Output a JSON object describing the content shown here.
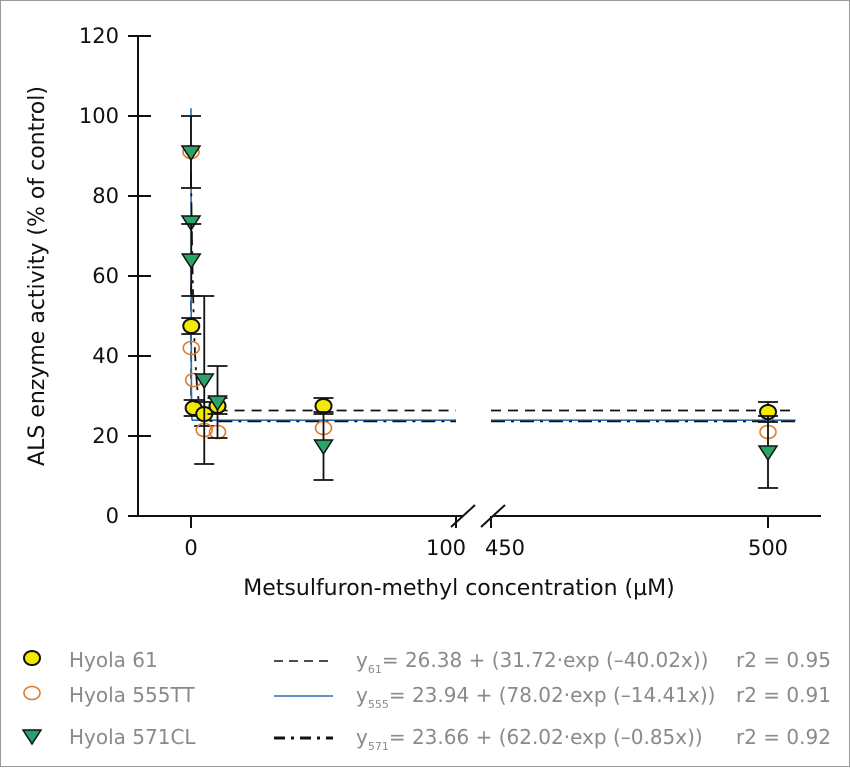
{
  "chart_data": {
    "type": "scatter",
    "xlabel": "Metsulfuron-methyl concentration (µM)",
    "ylabel": "ALS enzyme activity (% of control)",
    "ylim": [
      0,
      120
    ],
    "yticks": [
      "0",
      "20",
      "40",
      "60",
      "80",
      "100",
      "120"
    ],
    "xticks": [
      "0",
      "100",
      "450",
      "500"
    ],
    "x_axis_break": [
      100,
      450
    ],
    "grid": false,
    "legend_position": "bottom",
    "series": [
      {
        "name": "Hyola 61",
        "marker": "circle-filled",
        "color": "#f2ea00",
        "x": [
          0.1,
          1,
          5,
          10,
          50,
          500
        ],
        "y": [
          47.5,
          27,
          25.5,
          27.5,
          27.5,
          26
        ],
        "err": [
          2,
          2,
          3,
          2,
          2,
          2.5
        ],
        "fit": {
          "label": "y61",
          "sub": "61",
          "equation": "= 26.38 + (31.72·exp (–40.02x))",
          "r2": "r2 = 0.95",
          "a": 26.38,
          "b": 31.72,
          "k": 40.02,
          "style": "dashed",
          "color": "#111111"
        }
      },
      {
        "name": "Hyola 555TT",
        "marker": "circle-open",
        "color": "#e07b2a",
        "x": [
          0,
          0.1,
          1,
          5,
          10,
          50,
          500
        ],
        "y": [
          91,
          42,
          34,
          21.5,
          21,
          22,
          21
        ],
        "err": [
          0,
          0,
          0,
          0,
          0,
          0,
          0
        ],
        "fit": {
          "label": "y555",
          "sub": "555",
          "equation": "= 23.94 + (78.02·exp (–14.41x))",
          "r2": "r2 = 0.91",
          "a": 23.94,
          "b": 78.02,
          "k": 14.41,
          "style": "solid",
          "color": "#2a6fb5"
        }
      },
      {
        "name": "Hyola 571CL",
        "marker": "triangle-down",
        "color": "#2aa36b",
        "x": [
          0,
          0.01,
          0.1,
          5,
          10,
          50,
          500
        ],
        "y": [
          91,
          73.5,
          64,
          34,
          28.5,
          17.5,
          16
        ],
        "err": [
          9,
          0,
          9,
          21,
          9,
          8.5,
          9
        ],
        "fit": {
          "label": "y571",
          "sub": "571",
          "equation": "= 23.66 + (62.02·exp (–0.85x))",
          "r2": "r2 = 0.92",
          "a": 23.66,
          "b": 62.02,
          "k": 0.85,
          "style": "dashdot",
          "color": "#111111"
        }
      }
    ]
  }
}
